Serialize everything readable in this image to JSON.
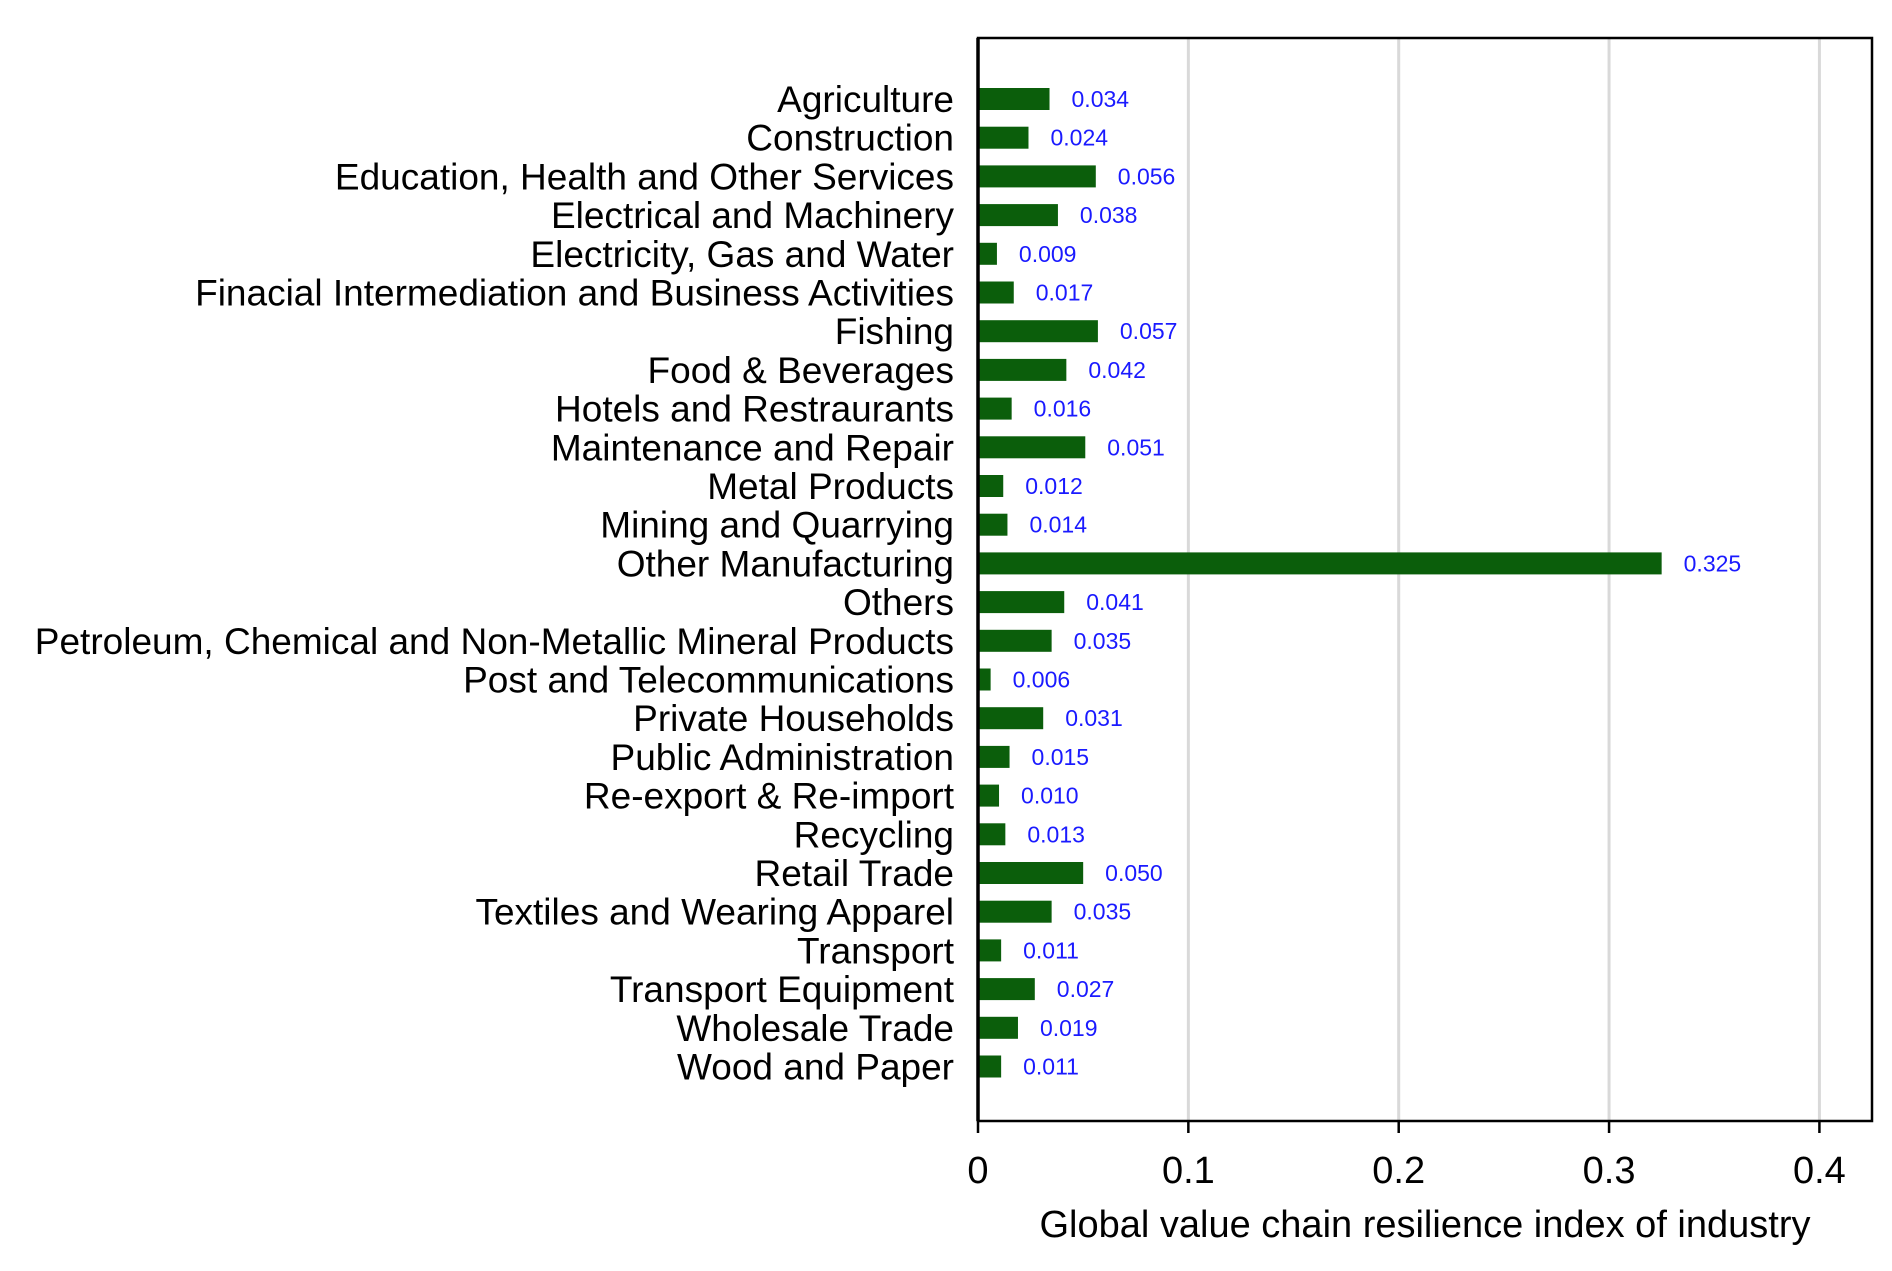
{
  "chart_data": {
    "type": "bar",
    "orientation": "horizontal",
    "categories": [
      "Agriculture",
      "Construction",
      "Education, Health and Other Services",
      "Electrical and Machinery",
      "Electricity, Gas and Water",
      "Finacial Intermediation and Business Activities",
      "Fishing",
      "Food & Beverages",
      "Hotels and Restraurants",
      "Maintenance and Repair",
      "Metal Products",
      "Mining and Quarrying",
      "Other Manufacturing",
      "Others",
      "Petroleum, Chemical and Non-Metallic Mineral Products",
      "Post and Telecommunications",
      "Private Households",
      "Public Administration",
      "Re-export & Re-import",
      "Recycling",
      "Retail Trade",
      "Textiles and Wearing Apparel",
      "Transport",
      "Transport Equipment",
      "Wholesale Trade",
      "Wood and Paper"
    ],
    "values": [
      0.034,
      0.024,
      0.056,
      0.038,
      0.009,
      0.017,
      0.057,
      0.042,
      0.016,
      0.051,
      0.012,
      0.014,
      0.325,
      0.041,
      0.035,
      0.006,
      0.031,
      0.015,
      0.01,
      0.013,
      0.05,
      0.035,
      0.011,
      0.027,
      0.019,
      0.011
    ],
    "value_labels": [
      "0.034",
      "0.024",
      "0.056",
      "0.038",
      "0.009",
      "0.017",
      "0.057",
      "0.042",
      "0.016",
      "0.051",
      "0.012",
      "0.014",
      "0.325",
      "0.041",
      "0.035",
      "0.006",
      "0.031",
      "0.015",
      "0.010",
      "0.013",
      "0.050",
      "0.035",
      "0.011",
      "0.027",
      "0.019",
      "0.011"
    ],
    "xlabel": "Global value chain resilience index of industry",
    "xlim": [
      0,
      0.425
    ],
    "xticks": [
      0,
      0.1,
      0.2,
      0.3,
      0.4
    ],
    "xtick_labels": [
      "0",
      "0.1",
      "0.2",
      "0.3",
      "0.4"
    ],
    "grid": "vertical",
    "colors": {
      "bar": "#0b5e0b",
      "value_label": "#1a1aff",
      "grid": "#d9d9d9",
      "text": "#000000"
    }
  }
}
